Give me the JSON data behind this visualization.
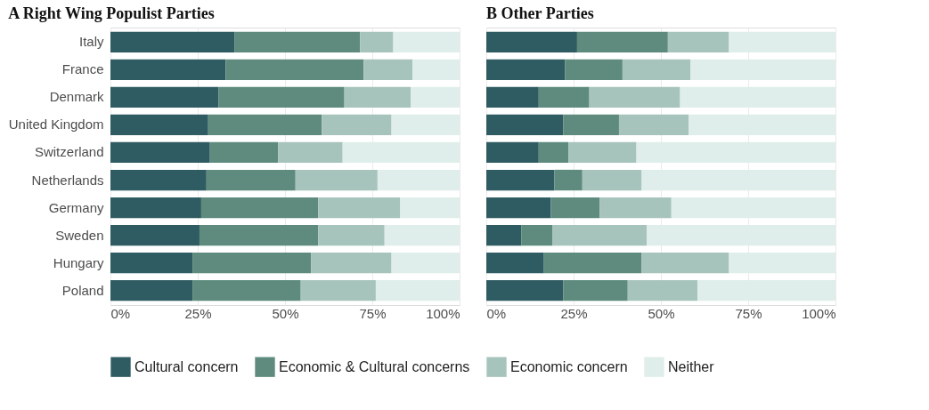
{
  "chart_data": [
    {
      "type": "bar",
      "orientation": "horizontal",
      "stacked": true,
      "title": "A  Right Wing Populist Parties",
      "categories": [
        "Italy",
        "France",
        "Denmark",
        "United Kingdom",
        "Switzerland",
        "Netherlands",
        "Germany",
        "Sweden",
        "Hungary",
        "Poland"
      ],
      "xlim": [
        0,
        100
      ],
      "xticks": [
        {
          "value": 0,
          "label": "0%"
        },
        {
          "value": 25,
          "label": "25%"
        },
        {
          "value": 50,
          "label": "50%"
        },
        {
          "value": 75,
          "label": "75%"
        },
        {
          "value": 100,
          "label": "100%"
        }
      ],
      "grid": true,
      "legend": "bottom",
      "series": [
        {
          "name": "Cultural concern",
          "color": "#2f5c62",
          "values": [
            35.5,
            33,
            31,
            28,
            28.5,
            27.5,
            26,
            25.5,
            23.5,
            23.5
          ]
        },
        {
          "name": "Economic & Cultural concerns",
          "color": "#5e8b7e",
          "values": [
            36,
            39.5,
            36,
            32.5,
            19.5,
            25.5,
            33.5,
            34,
            34,
            31
          ]
        },
        {
          "name": "Economic concern",
          "color": "#a7c4bc",
          "values": [
            9.5,
            14,
            19,
            20,
            18.5,
            23.5,
            23.5,
            19,
            23,
            21.5
          ]
        },
        {
          "name": "Neither",
          "color": "#dfeeea",
          "values": [
            19,
            13.5,
            14,
            19.5,
            33.5,
            23.5,
            17,
            21.5,
            19.5,
            24
          ]
        }
      ]
    },
    {
      "type": "bar",
      "orientation": "horizontal",
      "stacked": true,
      "title": "B  Other Parties",
      "categories": [
        null,
        null,
        null,
        null,
        null,
        null,
        null,
        null,
        null,
        null
      ],
      "xlim": [
        0,
        100
      ],
      "xticks": [
        {
          "value": 0,
          "label": "0%"
        },
        {
          "value": 25,
          "label": "25%"
        },
        {
          "value": 50,
          "label": "50%"
        },
        {
          "value": 75,
          "label": "75%"
        },
        {
          "value": 100,
          "label": "100%"
        }
      ],
      "grid": true,
      "legend": "bottom",
      "tick_labels": "x",
      "series": [
        {
          "name": "Cultural concern",
          "color": "#2f5c62",
          "values": [
            26,
            22.5,
            15,
            22,
            15,
            19.5,
            18.5,
            10,
            16.5,
            22
          ]
        },
        {
          "name": "Economic & Cultural concerns",
          "color": "#5e8b7e",
          "values": [
            26,
            16.5,
            14.5,
            16,
            8.5,
            8,
            14,
            9,
            28,
            18.5
          ]
        },
        {
          "name": "Economic concern",
          "color": "#a7c4bc",
          "values": [
            17.5,
            19.5,
            26,
            20,
            19.5,
            17,
            20.5,
            27,
            25,
            20
          ]
        },
        {
          "name": "Neither",
          "color": "#dfeeea",
          "values": [
            30.5,
            41.5,
            44.5,
            42,
            57,
            55.5,
            47,
            54,
            30.5,
            39.5
          ]
        }
      ]
    }
  ]
}
